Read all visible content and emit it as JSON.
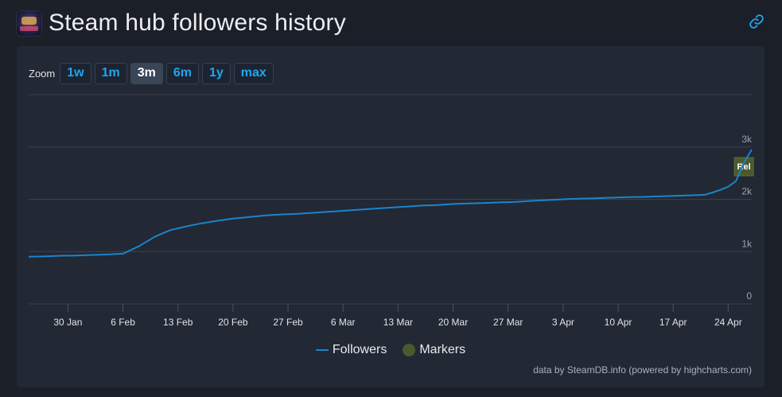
{
  "page": {
    "title": "Steam hub followers history",
    "game_icon": "game-logo-image",
    "link_icon": "link-icon"
  },
  "zoom": {
    "label": "Zoom",
    "buttons": [
      "1w",
      "1m",
      "3m",
      "6m",
      "1y",
      "max"
    ],
    "active": "3m"
  },
  "legend": {
    "followers": "Followers",
    "markers": "Markers"
  },
  "credits": "data by SteamDB.info (powered by highcharts.com)",
  "colors": {
    "series": "#1b84cc",
    "marker": "#4a5a2c",
    "accent": "#1ea6ee"
  },
  "chart_data": {
    "type": "line",
    "title": "",
    "xlabel": "",
    "ylabel": "",
    "ylim": [
      0,
      4000
    ],
    "y_ticks": [
      {
        "value": 0,
        "label": "0"
      },
      {
        "value": 1000,
        "label": "1k"
      },
      {
        "value": 2000,
        "label": "2k"
      },
      {
        "value": 3000,
        "label": "3k"
      }
    ],
    "x_ticks": [
      "30 Jan",
      "6 Feb",
      "13 Feb",
      "20 Feb",
      "27 Feb",
      "6 Mar",
      "13 Mar",
      "20 Mar",
      "27 Mar",
      "3 Apr",
      "10 Apr",
      "17 Apr",
      "24 Apr"
    ],
    "grid": true,
    "legend_position": "bottom-center",
    "series": [
      {
        "name": "Followers",
        "points": [
          [
            "25 Jan",
            900
          ],
          [
            "27 Jan",
            910
          ],
          [
            "29 Jan",
            920
          ],
          [
            "31 Jan",
            925
          ],
          [
            "2 Feb",
            935
          ],
          [
            "4 Feb",
            945
          ],
          [
            "6 Feb",
            960
          ],
          [
            "8 Feb",
            1100
          ],
          [
            "10 Feb",
            1280
          ],
          [
            "12 Feb",
            1410
          ],
          [
            "14 Feb",
            1480
          ],
          [
            "16 Feb",
            1540
          ],
          [
            "18 Feb",
            1590
          ],
          [
            "20 Feb",
            1630
          ],
          [
            "22 Feb",
            1660
          ],
          [
            "24 Feb",
            1690
          ],
          [
            "26 Feb",
            1710
          ],
          [
            "28 Feb",
            1720
          ],
          [
            "2 Mar",
            1740
          ],
          [
            "4 Mar",
            1760
          ],
          [
            "6 Mar",
            1780
          ],
          [
            "8 Mar",
            1800
          ],
          [
            "10 Mar",
            1820
          ],
          [
            "12 Mar",
            1840
          ],
          [
            "14 Mar",
            1860
          ],
          [
            "16 Mar",
            1880
          ],
          [
            "18 Mar",
            1890
          ],
          [
            "20 Mar",
            1910
          ],
          [
            "22 Mar",
            1920
          ],
          [
            "24 Mar",
            1930
          ],
          [
            "26 Mar",
            1940
          ],
          [
            "28 Mar",
            1950
          ],
          [
            "30 Mar",
            1970
          ],
          [
            "1 Apr",
            1985
          ],
          [
            "3 Apr",
            2000
          ],
          [
            "5 Apr",
            2010
          ],
          [
            "7 Apr",
            2020
          ],
          [
            "9 Apr",
            2030
          ],
          [
            "11 Apr",
            2040
          ],
          [
            "13 Apr",
            2045
          ],
          [
            "15 Apr",
            2055
          ],
          [
            "17 Apr",
            2065
          ],
          [
            "19 Apr",
            2075
          ],
          [
            "21 Apr",
            2085
          ],
          [
            "22 Apr",
            2130
          ],
          [
            "23 Apr",
            2180
          ],
          [
            "24 Apr",
            2240
          ],
          [
            "25 Apr",
            2350
          ],
          [
            "26 Apr",
            2700
          ],
          [
            "27 Apr",
            2950
          ]
        ]
      }
    ],
    "markers": [
      {
        "date": "26 Apr",
        "label": "Rel"
      }
    ]
  }
}
